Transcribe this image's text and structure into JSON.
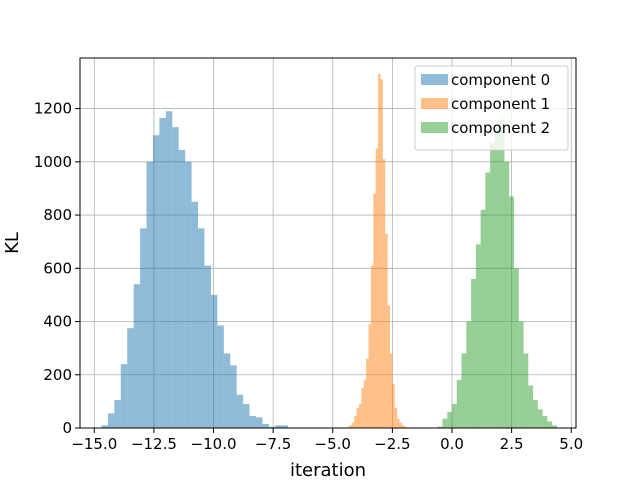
{
  "chart_data": {
    "type": "histogram",
    "title": "",
    "xlabel": "iteration",
    "ylabel": "KL",
    "xlim": [
      -15.6,
      5.2
    ],
    "ylim": [
      0,
      1390
    ],
    "xticks": [
      -15.0,
      -12.5,
      -10.0,
      -7.5,
      -5.0,
      -2.5,
      0.0,
      2.5,
      5.0
    ],
    "xtick_labels": [
      "−15.0",
      "−12.5",
      "−10.0",
      "−7.5",
      "−5.0",
      "−2.5",
      "0.0",
      "2.5",
      "5.0"
    ],
    "yticks": [
      0,
      200,
      400,
      600,
      800,
      1000,
      1200
    ],
    "ytick_labels": [
      "0",
      "200",
      "400",
      "600",
      "800",
      "1000",
      "1200"
    ],
    "grid": true,
    "legend_position": "top-right",
    "bar_alpha": 0.5,
    "series": [
      {
        "name": "component 0",
        "color": "#1f77b4",
        "bin_edges": [
          -14.7,
          -14.43,
          -14.16,
          -13.89,
          -13.62,
          -13.35,
          -13.08,
          -12.81,
          -12.54,
          -12.27,
          -12.0,
          -11.73,
          -11.46,
          -11.19,
          -10.92,
          -10.65,
          -10.38,
          -10.11,
          -9.84,
          -9.57,
          -9.3,
          -9.03,
          -8.76,
          -8.49,
          -8.22,
          -7.95,
          -7.68,
          -7.41,
          -7.14,
          -6.87,
          -6.6
        ],
        "counts": [
          10,
          55,
          105,
          240,
          375,
          540,
          750,
          1000,
          1100,
          1165,
          1190,
          1130,
          1045,
          1000,
          850,
          750,
          610,
          500,
          385,
          280,
          235,
          125,
          90,
          45,
          40,
          15,
          5,
          10,
          10,
          0
        ]
      },
      {
        "name": "component 1",
        "color": "#ff7f0e",
        "bin_edges": [
          -4.4,
          -4.3,
          -4.2,
          -4.1,
          -4.0,
          -3.9,
          -3.8,
          -3.7,
          -3.6,
          -3.5,
          -3.4,
          -3.3,
          -3.2,
          -3.1,
          -3.0,
          -2.9,
          -2.8,
          -2.7,
          -2.6,
          -2.5,
          -2.4,
          -2.3,
          -2.2,
          -2.1,
          -2.0,
          -1.9,
          -1.8
        ],
        "counts": [
          5,
          10,
          20,
          45,
          75,
          90,
          150,
          180,
          260,
          390,
          610,
          880,
          1050,
          1330,
          1310,
          1010,
          730,
          460,
          280,
          165,
          75,
          35,
          20,
          10,
          5,
          0
        ]
      },
      {
        "name": "component 2",
        "color": "#2ca02c",
        "bin_edges": [
          -0.6,
          -0.4,
          -0.2,
          0.0,
          0.2,
          0.4,
          0.6,
          0.8,
          1.0,
          1.2,
          1.4,
          1.6,
          1.8,
          2.0,
          2.2,
          2.4,
          2.6,
          2.8,
          3.0,
          3.2,
          3.4,
          3.6,
          3.8,
          4.0,
          4.2,
          4.4
        ],
        "counts": [
          5,
          35,
          60,
          90,
          180,
          280,
          400,
          560,
          690,
          820,
          960,
          1070,
          1130,
          1160,
          1000,
          870,
          600,
          400,
          280,
          160,
          105,
          70,
          45,
          25,
          10
        ]
      }
    ]
  }
}
